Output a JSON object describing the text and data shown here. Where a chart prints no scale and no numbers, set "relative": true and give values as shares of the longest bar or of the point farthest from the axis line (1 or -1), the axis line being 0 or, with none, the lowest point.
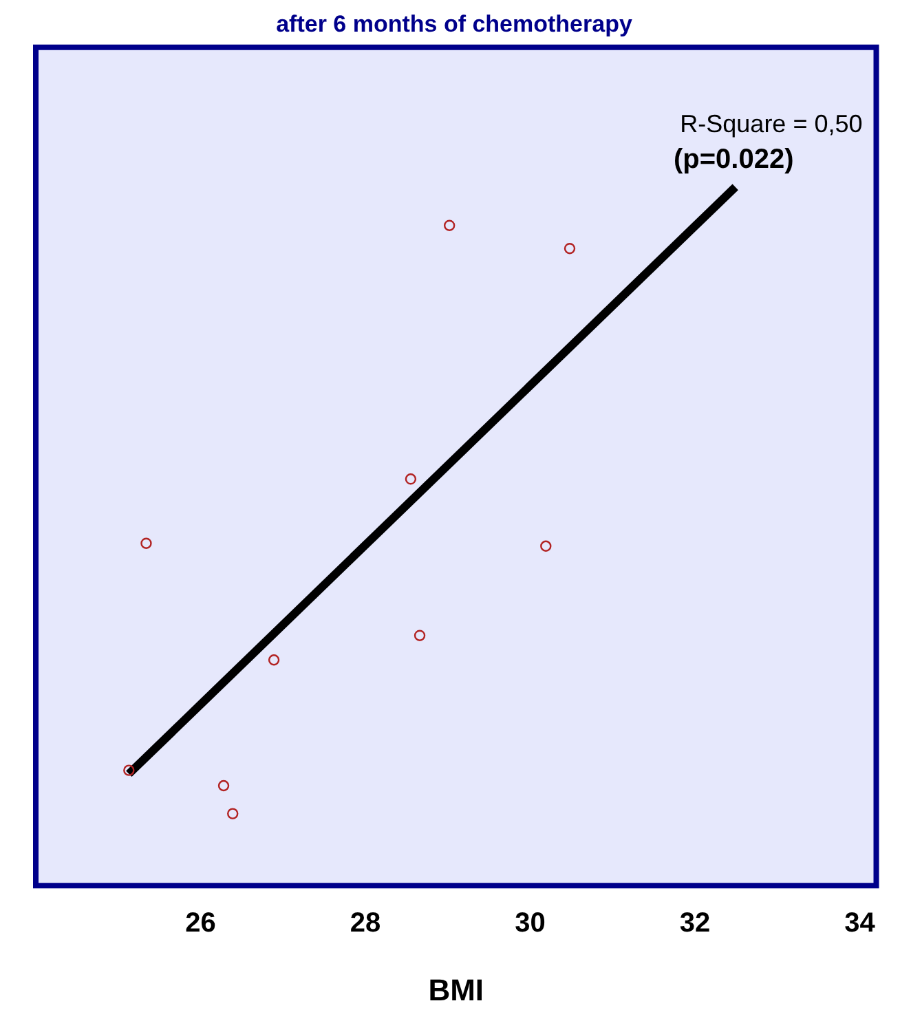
{
  "chart_data": {
    "type": "scatter",
    "title": "after 6 months of chemotherapy",
    "xlabel": "BMI",
    "relative": true,
    "xlim": [
      24.0,
      34.2
    ],
    "xticks": [
      26,
      28,
      30,
      32,
      34
    ],
    "legend": false,
    "annotations": [
      "R-Square = 0,50",
      "(p=0.022)"
    ],
    "series": [
      {
        "marker": "circle",
        "color": "#b22222",
        "x": [
          25.13,
          25.34,
          26.28,
          26.39,
          26.89,
          28.55,
          28.66,
          29.02,
          30.19,
          30.48
        ],
        "values": [
          0.165,
          0.49,
          0.143,
          0.103,
          0.323,
          0.582,
          0.358,
          0.945,
          0.486,
          0.912
        ]
      },
      {
        "type": "line",
        "color": "#000000",
        "x": [
          25.13,
          32.49
        ],
        "values": [
          0.16,
          1
        ]
      }
    ]
  }
}
